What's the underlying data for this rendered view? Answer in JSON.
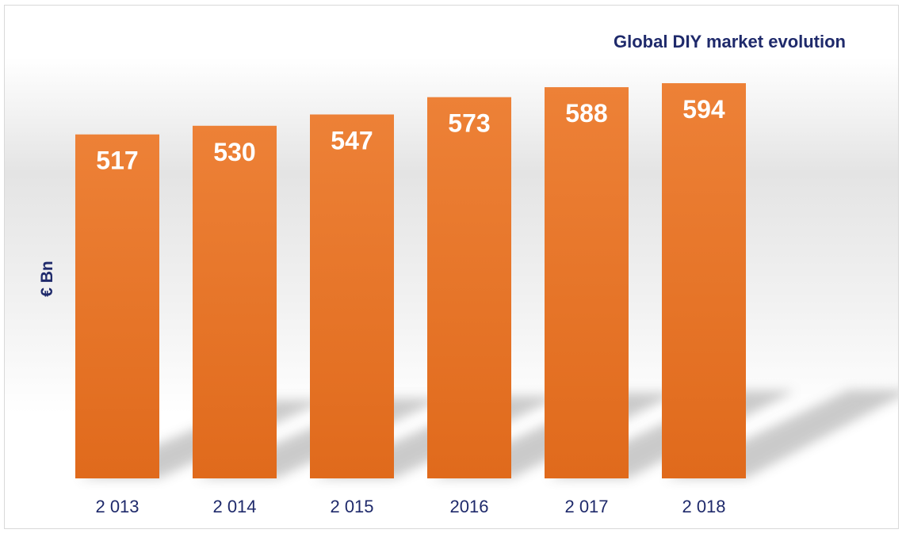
{
  "chart_data": {
    "type": "bar",
    "title": "Global DIY market evolution",
    "ylabel": "€ Bn",
    "xlabel": "",
    "categories": [
      "2 013",
      "2 014",
      "2 015",
      "2016",
      "2 017",
      "2 018"
    ],
    "values": [
      517,
      530,
      547,
      573,
      588,
      594
    ],
    "data_labels": [
      "517",
      "530",
      "547",
      "573",
      "588",
      "594"
    ],
    "bar_color": "#e8732a",
    "bar_color_top": "#ed8137",
    "bar_color_bottom": "#e06a1c",
    "text_color": "#1f2a6b",
    "grid": false,
    "legend": "none"
  }
}
